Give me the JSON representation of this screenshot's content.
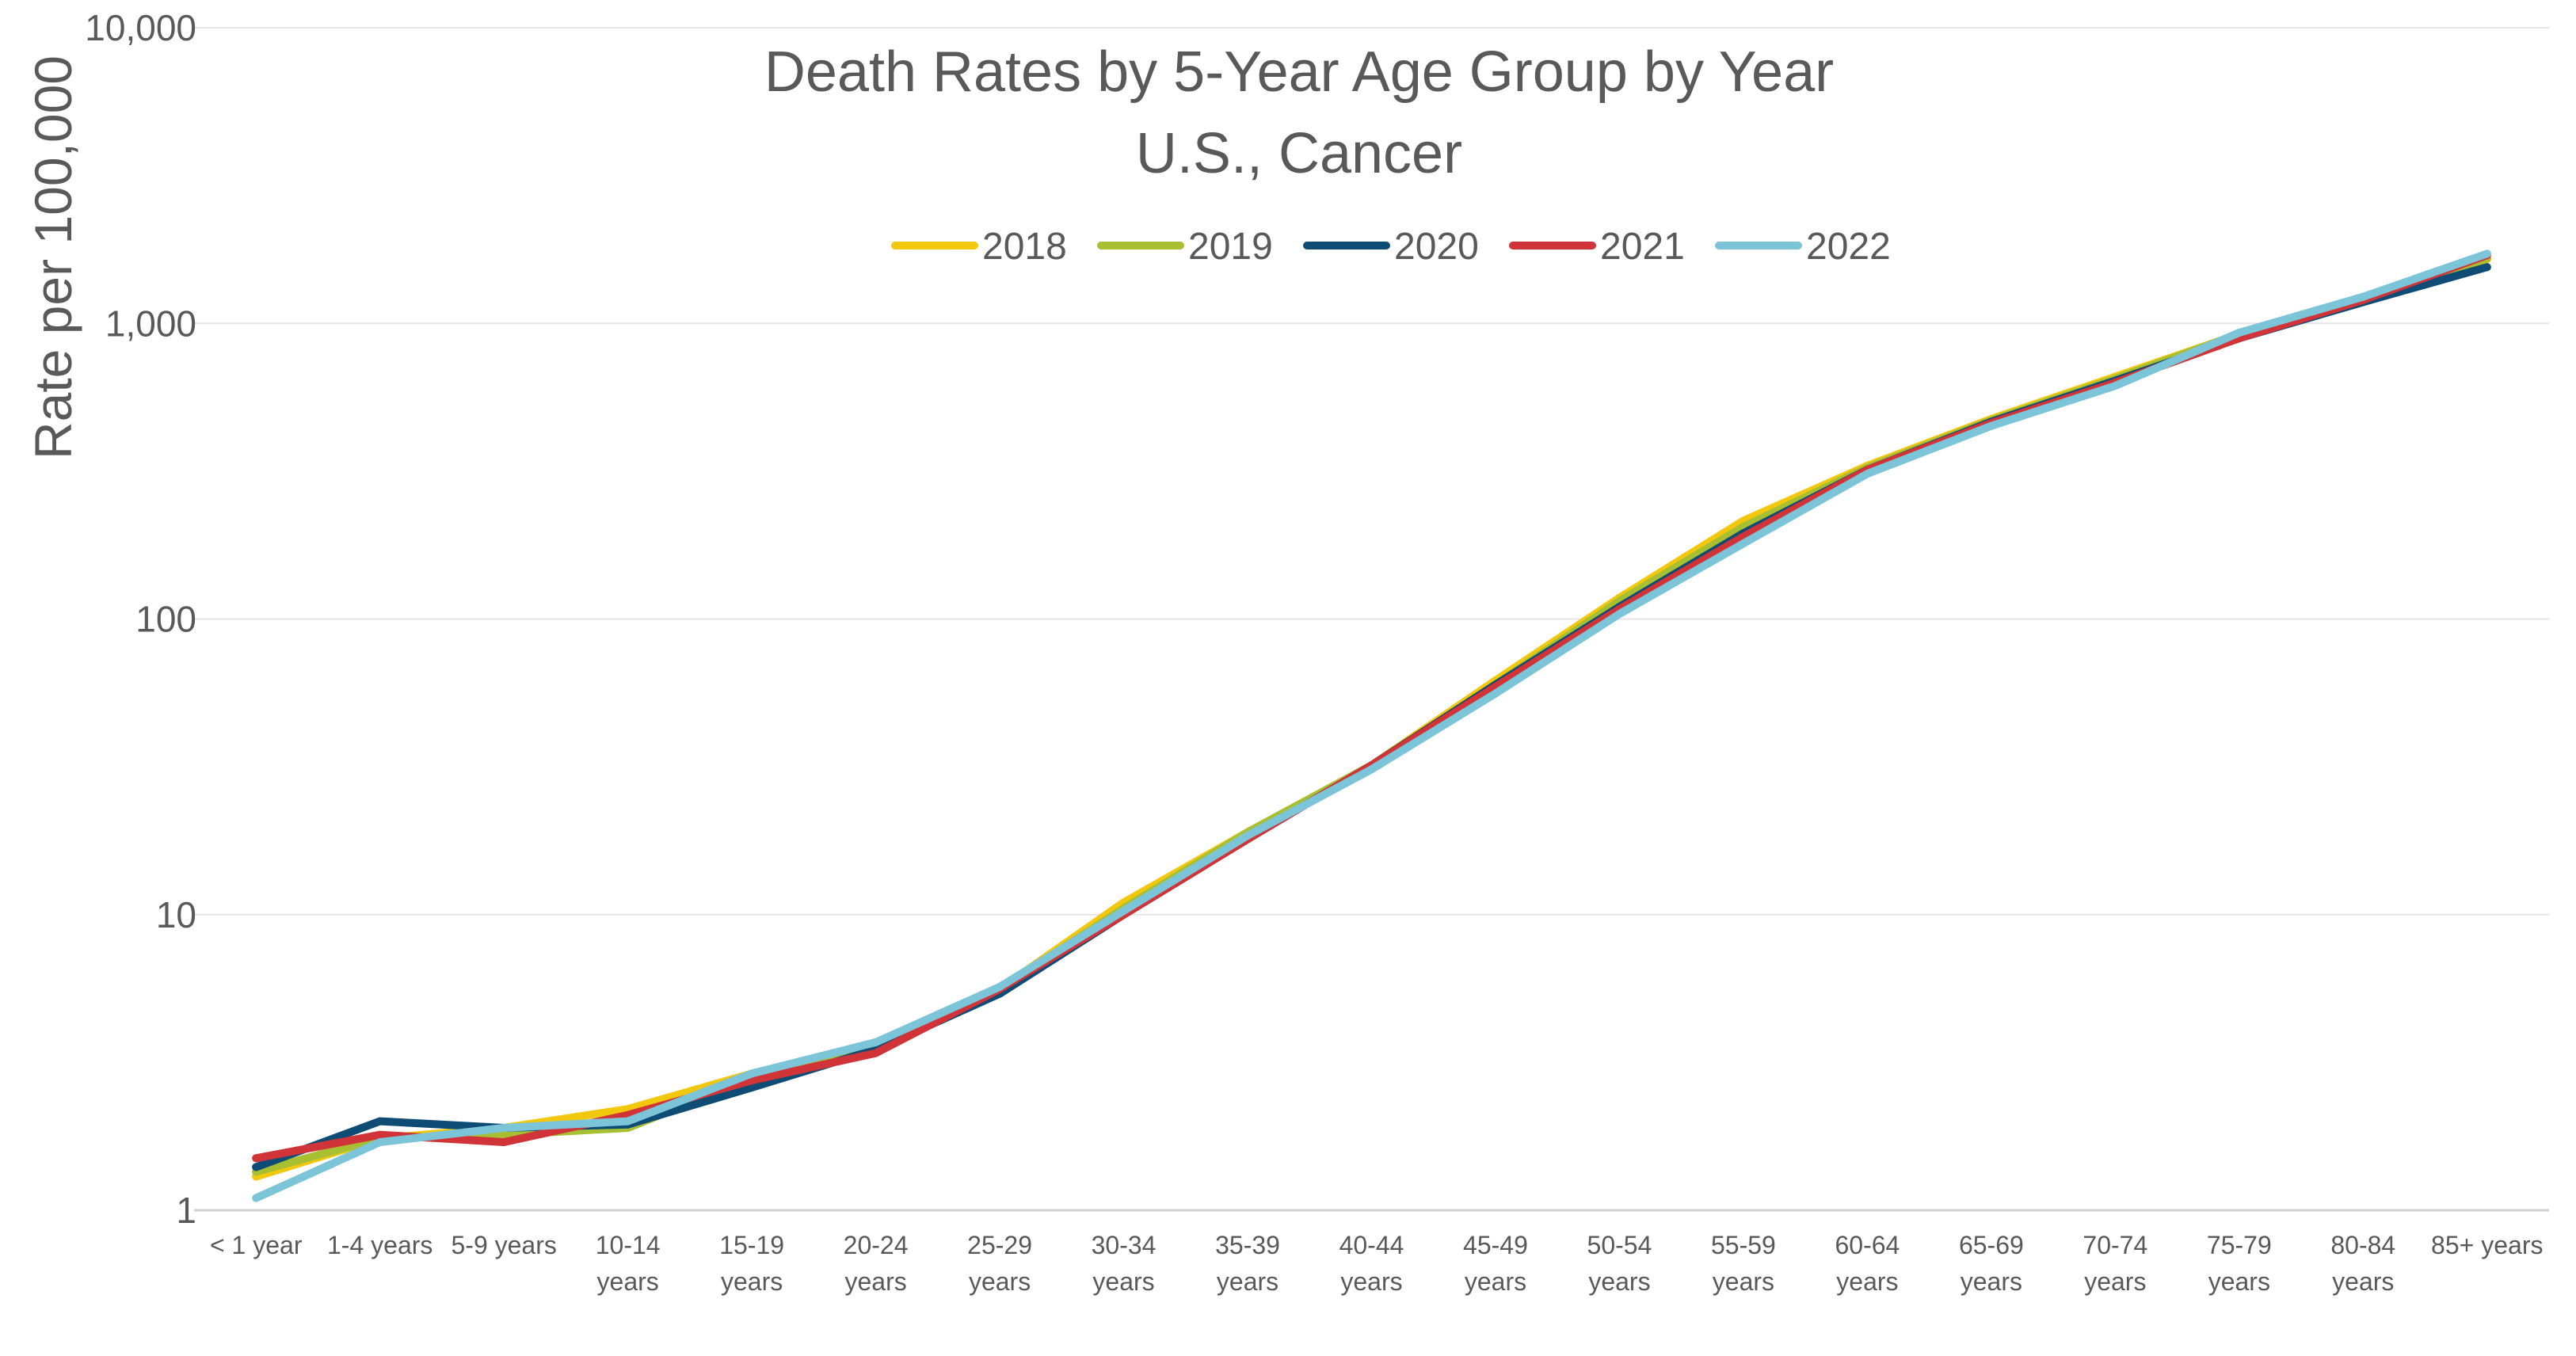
{
  "chart_data": {
    "type": "line",
    "title": "Death Rates by 5-Year Age Group by Year",
    "subtitle": "U.S., Cancer",
    "xlabel": "",
    "ylabel": "Rate per 100,000",
    "yscale": "log",
    "ylim": [
      1,
      10000
    ],
    "yticks": [
      {
        "value": 1,
        "label": "1"
      },
      {
        "value": 10,
        "label": "10"
      },
      {
        "value": 100,
        "label": "100"
      },
      {
        "value": 1000,
        "label": "1,000"
      },
      {
        "value": 10000,
        "label": "10,000"
      }
    ],
    "grid": true,
    "legend_position": "top-center",
    "categories": [
      [
        "< 1 year"
      ],
      [
        "1-4 years"
      ],
      [
        "5-9 years"
      ],
      [
        "10-14",
        "years"
      ],
      [
        "15-19",
        "years"
      ],
      [
        "20-24",
        "years"
      ],
      [
        "25-29",
        "years"
      ],
      [
        "30-34",
        "years"
      ],
      [
        "35-39",
        "years"
      ],
      [
        "40-44",
        "years"
      ],
      [
        "45-49",
        "years"
      ],
      [
        "50-54",
        "years"
      ],
      [
        "55-59",
        "years"
      ],
      [
        "60-64",
        "years"
      ],
      [
        "65-69",
        "years"
      ],
      [
        "70-74",
        "years"
      ],
      [
        "75-79",
        "years"
      ],
      [
        "80-84",
        "years"
      ],
      [
        "85+ years"
      ]
    ],
    "series": [
      {
        "name": "2018",
        "color": "#f2c80f",
        "values": [
          1.3,
          1.75,
          1.9,
          2.2,
          2.9,
          3.5,
          5.6,
          11,
          19,
          32,
          62,
          118,
          215,
          330,
          475,
          660,
          920,
          1200,
          1650
        ]
      },
      {
        "name": "2019",
        "color": "#a8bf32",
        "values": [
          1.35,
          1.75,
          1.8,
          1.9,
          2.8,
          3.5,
          5.6,
          10.5,
          19,
          32,
          60,
          115,
          205,
          325,
          470,
          650,
          920,
          1210,
          1660
        ]
      },
      {
        "name": "2020",
        "color": "#0f4c75",
        "values": [
          1.4,
          2.0,
          1.9,
          1.95,
          2.6,
          3.5,
          5.4,
          10,
          18,
          32,
          60,
          110,
          195,
          320,
          465,
          640,
          890,
          1180,
          1550
        ]
      },
      {
        "name": "2021",
        "color": "#d13438",
        "values": [
          1.5,
          1.8,
          1.7,
          2.1,
          2.75,
          3.4,
          5.6,
          10,
          18,
          32,
          59,
          108,
          190,
          320,
          460,
          630,
          890,
          1200,
          1700
        ]
      },
      {
        "name": "2022",
        "color": "#7cc4d8",
        "values": [
          1.1,
          1.7,
          1.9,
          2.0,
          2.9,
          3.7,
          5.7,
          10.3,
          18.5,
          31,
          56,
          104,
          180,
          310,
          450,
          615,
          930,
          1230,
          1720
        ]
      }
    ]
  }
}
